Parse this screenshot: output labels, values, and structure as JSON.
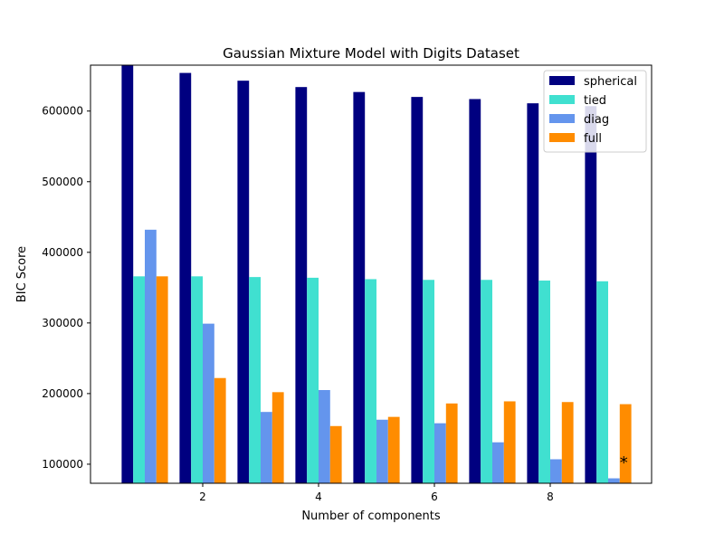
{
  "chart_data": {
    "type": "bar",
    "title": "Gaussian Mixture Model with Digits Dataset",
    "xlabel": "Number of components",
    "ylabel": "BIC Score",
    "categories": [
      1,
      2,
      3,
      4,
      5,
      6,
      7,
      8,
      9
    ],
    "xticks": [
      2,
      4,
      6,
      8
    ],
    "yticks": [
      100000,
      200000,
      300000,
      400000,
      500000,
      600000
    ],
    "ylim": [
      73000,
      665000
    ],
    "legend_position": "top-right",
    "grid": false,
    "series": [
      {
        "name": "spherical",
        "color": "#000080",
        "values": [
          666000,
          654000,
          643000,
          634000,
          627000,
          620000,
          617000,
          611000,
          607000
        ]
      },
      {
        "name": "tied",
        "color": "#40e0d0",
        "values": [
          366000,
          366000,
          365000,
          364000,
          362000,
          361000,
          361000,
          360000,
          359000
        ]
      },
      {
        "name": "diag",
        "color": "#6495ed",
        "values": [
          432000,
          299000,
          174000,
          205000,
          163000,
          158000,
          131000,
          107000,
          80000
        ]
      },
      {
        "name": "full",
        "color": "#ff8c00",
        "values": [
          366000,
          222000,
          202000,
          154000,
          167000,
          186000,
          189000,
          188000,
          185000
        ]
      }
    ],
    "annotation": {
      "text": "*",
      "category": 9,
      "value": 105000
    }
  }
}
